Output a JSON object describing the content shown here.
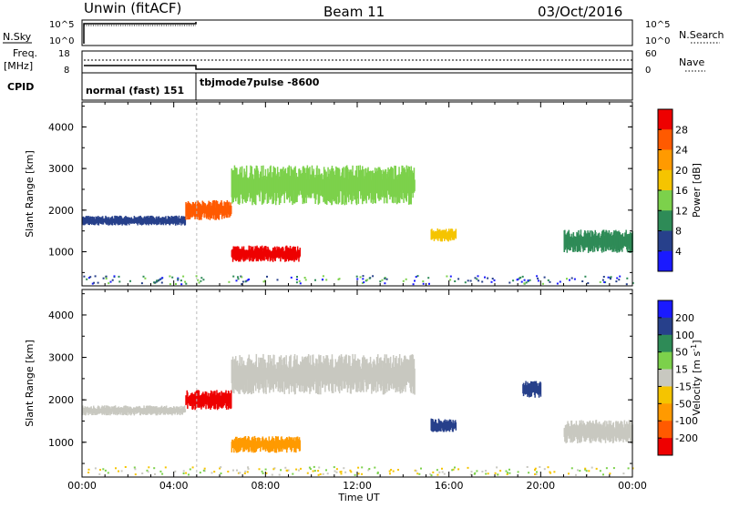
{
  "header": {
    "station": "Unwin (fitACF)",
    "beam": "Beam 11",
    "date": "03/Oct/2016"
  },
  "top_panels": {
    "nsky_label": "N.Sky",
    "nsearch_label": "N.Search",
    "nsky_ticks": [
      "10^5",
      "10^0"
    ],
    "freq_label_line1": "Freq.",
    "freq_label_line2": "[MHz]",
    "freq_ticks": [
      "18",
      "8"
    ],
    "nave_label": "Nave",
    "nave_ticks": [
      "60",
      "0"
    ],
    "cpid_label": "CPID",
    "cpid_modes": [
      "normal (fast) 151",
      "tbjmode7pulse -8600"
    ]
  },
  "colors": {
    "power": [
      "#1a1aff",
      "#27408b",
      "#2e8b57",
      "#7cd14b",
      "#f5c400",
      "#ff9a00",
      "#ff5a00",
      "#ee0000"
    ],
    "velocity": [
      "#ee0000",
      "#ff5a00",
      "#ff9a00",
      "#f5c400",
      "#c8c8c0",
      "#7cd14b",
      "#2e8b57",
      "#27408b",
      "#1a1aff"
    ]
  },
  "chart_data": [
    {
      "type": "heatmap",
      "name": "power",
      "ylabel": "Slant Range [km]",
      "xlabel": "Time UT",
      "xlim": [
        0,
        24
      ],
      "ylim": [
        180,
        4600
      ],
      "x_ticks": [
        "00:00",
        "04:00",
        "08:00",
        "12:00",
        "16:00",
        "20:00",
        "00:00"
      ],
      "y_ticks": [
        1000,
        2000,
        3000,
        4000
      ],
      "colorbar_label": "Power [dB]",
      "colorbar_ticks": [
        "4",
        "8",
        "12",
        "16",
        "20",
        "24",
        "28"
      ],
      "regions": [
        {
          "x": [
            0,
            4.5
          ],
          "y": [
            1600,
            1900
          ],
          "level": 1
        },
        {
          "x": [
            4.5,
            6.5
          ],
          "y": [
            1700,
            2300
          ],
          "level": 6
        },
        {
          "x": [
            6.5,
            9.5
          ],
          "y": [
            700,
            1200
          ],
          "level": 7
        },
        {
          "x": [
            6.5,
            14.5
          ],
          "y": [
            2000,
            3200
          ],
          "level": 3
        },
        {
          "x": [
            15.2,
            16.3
          ],
          "y": [
            1200,
            1600
          ],
          "level": 4
        },
        {
          "x": [
            21,
            24
          ],
          "y": [
            900,
            1600
          ],
          "level": 2
        }
      ]
    },
    {
      "type": "heatmap",
      "name": "velocity",
      "ylabel": "Slant Range [km]",
      "xlabel": "Time UT",
      "xlim": [
        0,
        24
      ],
      "ylim": [
        180,
        4600
      ],
      "x_ticks": [
        "00:00",
        "04:00",
        "08:00",
        "12:00",
        "16:00",
        "20:00",
        "00:00"
      ],
      "y_ticks": [
        1000,
        2000,
        3000,
        4000
      ],
      "colorbar_label": "Velocity [m s",
      "colorbar_label_sup": "-1",
      "colorbar_label_end": "]",
      "colorbar_ticks": [
        "200",
        "100",
        "50",
        "15",
        "-15",
        "-50",
        "-100",
        "-200"
      ],
      "regions": [
        {
          "x": [
            0,
            4.5
          ],
          "y": [
            1600,
            1900
          ],
          "value": 0
        },
        {
          "x": [
            4.5,
            6.5
          ],
          "y": [
            1700,
            2300
          ],
          "value": -200
        },
        {
          "x": [
            6.5,
            9.5
          ],
          "y": [
            700,
            1200
          ],
          "value": -80
        },
        {
          "x": [
            6.5,
            14.5
          ],
          "y": [
            2000,
            3200
          ],
          "value": 10
        },
        {
          "x": [
            15.2,
            16.3
          ],
          "y": [
            1200,
            1600
          ],
          "value": 120
        },
        {
          "x": [
            19.2,
            20
          ],
          "y": [
            2000,
            2500
          ],
          "value": 200
        },
        {
          "x": [
            21,
            24
          ],
          "y": [
            900,
            1600
          ],
          "value": 0
        }
      ]
    }
  ]
}
